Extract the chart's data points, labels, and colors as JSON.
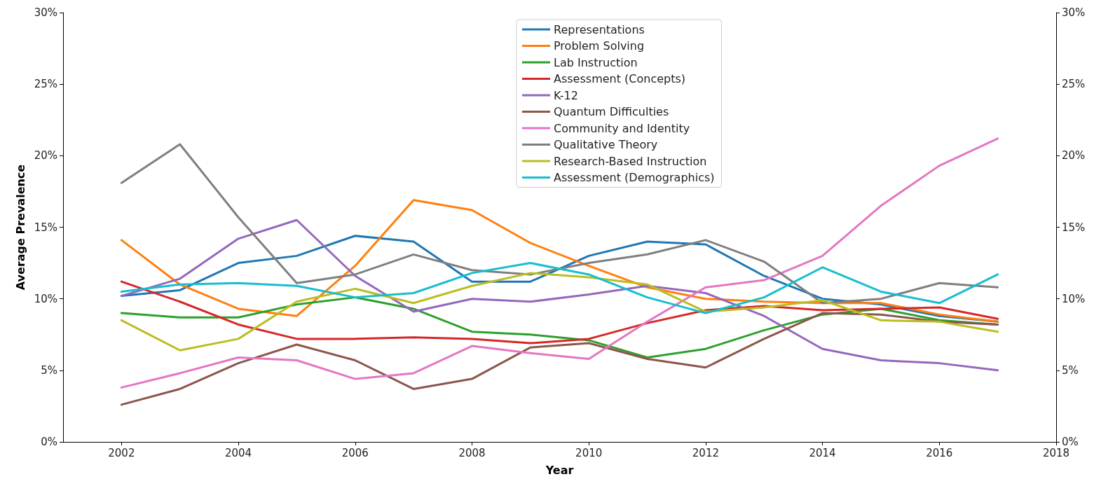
{
  "chart_data": {
    "type": "line",
    "xlabel": "Year",
    "ylabel": "Average Prevalence",
    "x": [
      2002,
      2003,
      2004,
      2005,
      2006,
      2007,
      2008,
      2009,
      2010,
      2011,
      2012,
      2013,
      2014,
      2015,
      2016,
      2017
    ],
    "xlim": [
      2001,
      2018
    ],
    "xticks": [
      2002,
      2004,
      2006,
      2008,
      2010,
      2012,
      2014,
      2016,
      2018
    ],
    "ylim": [
      0,
      30
    ],
    "yticks": [
      {
        "value": 0,
        "label": "0%"
      },
      {
        "value": 5,
        "label": "5%"
      },
      {
        "value": 10,
        "label": "10%"
      },
      {
        "value": 15,
        "label": "15%"
      },
      {
        "value": 20,
        "label": "20%"
      },
      {
        "value": 25,
        "label": "25%"
      },
      {
        "value": 30,
        "label": "30%"
      }
    ],
    "y2lim": [
      0,
      30
    ],
    "y2ticks": [
      {
        "value": 0,
        "label": "0%"
      },
      {
        "value": 5,
        "label": "5%"
      },
      {
        "value": 10,
        "label": "10%"
      },
      {
        "value": 15,
        "label": "15%"
      },
      {
        "value": 20,
        "label": "20%"
      },
      {
        "value": 25,
        "label": "25%"
      },
      {
        "value": 30,
        "label": "30%"
      }
    ],
    "legend": "top",
    "grid": false,
    "line_style": "solid",
    "series": [
      {
        "name": "Representations",
        "color": "#1f77b4",
        "values": [
          10.2,
          10.6,
          12.5,
          13.0,
          14.4,
          14.0,
          11.2,
          11.2,
          13.0,
          14.0,
          13.8,
          11.6,
          10.0,
          9.6,
          8.8,
          8.4
        ]
      },
      {
        "name": "Problem Solving",
        "color": "#ff7f0e",
        "values": [
          14.1,
          11.0,
          9.3,
          8.8,
          12.3,
          16.9,
          16.2,
          13.9,
          12.3,
          10.8,
          10.0,
          9.8,
          9.7,
          9.7,
          8.9,
          8.4
        ]
      },
      {
        "name": "Lab Instruction",
        "color": "#2ca02c",
        "values": [
          9.0,
          8.7,
          8.7,
          9.6,
          10.1,
          9.3,
          7.7,
          7.5,
          7.1,
          5.9,
          6.5,
          7.8,
          8.9,
          9.3,
          8.5,
          8.2
        ]
      },
      {
        "name": "Assessment (Concepts)",
        "color": "#d62728",
        "values": [
          11.2,
          9.8,
          8.2,
          7.2,
          7.2,
          7.3,
          7.2,
          6.9,
          7.2,
          8.3,
          9.2,
          9.5,
          9.2,
          9.3,
          9.4,
          8.6
        ]
      },
      {
        "name": "K-12",
        "color": "#9467bd",
        "values": [
          10.2,
          11.4,
          14.2,
          15.5,
          11.6,
          9.1,
          10.0,
          9.8,
          10.3,
          10.9,
          10.4,
          8.8,
          6.5,
          5.7,
          5.5,
          5.0
        ]
      },
      {
        "name": "Quantum Difficulties",
        "color": "#8c564b",
        "values": [
          2.6,
          3.7,
          5.5,
          6.8,
          5.7,
          3.7,
          4.4,
          6.6,
          6.9,
          5.8,
          5.2,
          7.2,
          9.0,
          8.9,
          8.4,
          8.2
        ]
      },
      {
        "name": "Community and Identity",
        "color": "#e377c2",
        "values": [
          3.8,
          4.8,
          5.9,
          5.7,
          4.4,
          4.8,
          6.7,
          6.2,
          5.8,
          8.4,
          10.8,
          11.3,
          13.0,
          16.5,
          19.3,
          21.2
        ]
      },
      {
        "name": "Qualitative Theory",
        "color": "#7f7f7f",
        "values": [
          18.1,
          20.8,
          15.7,
          11.1,
          11.7,
          13.1,
          12.0,
          11.7,
          12.5,
          13.1,
          14.1,
          12.6,
          9.7,
          10.0,
          11.1,
          10.8
        ]
      },
      {
        "name": "Research-Based Instruction",
        "color": "#bcbd22",
        "values": [
          8.5,
          6.4,
          7.2,
          9.8,
          10.7,
          9.7,
          10.9,
          11.8,
          11.5,
          11.0,
          9.1,
          9.4,
          9.9,
          8.5,
          8.4,
          7.7
        ]
      },
      {
        "name": "Assessment (Demographics)",
        "color": "#17becf",
        "values": [
          10.5,
          11.0,
          11.1,
          10.9,
          10.1,
          10.4,
          11.8,
          12.5,
          11.7,
          10.1,
          9.0,
          10.1,
          12.2,
          10.5,
          9.7,
          11.7
        ]
      }
    ]
  }
}
